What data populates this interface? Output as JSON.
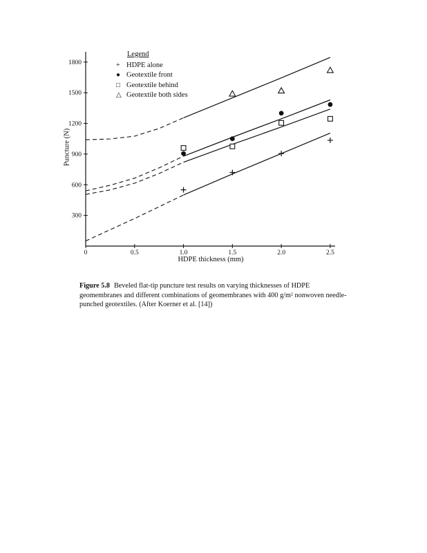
{
  "figure": {
    "caption_label": "Figure 5.8",
    "caption_text": "Beveled flat-tip puncture test results on varying thicknesses of HDPE geomembranes and different combinations of geomembranes with 400 g/m² nonwoven needle-punched geotextiles. (After Koerner et al. [14])"
  },
  "chart_data": {
    "type": "scatter",
    "title": "",
    "xlabel": "HDPE thickness (mm)",
    "ylabel": "Puncture (N)",
    "xlim": [
      0,
      2.55
    ],
    "ylim": [
      0,
      1900
    ],
    "xticks": [
      0,
      0.5,
      1.0,
      1.5,
      2.0,
      2.5
    ],
    "xtick_labels": [
      "0",
      "0.5",
      "1.0",
      "1.5",
      "2.0",
      "2.5"
    ],
    "yticks": [
      300,
      600,
      900,
      1200,
      1500,
      1800
    ],
    "grid": false,
    "line_color": "#111111",
    "legend": {
      "title": "Legend",
      "position": "top-left"
    },
    "legend_note": "dashed segments are extrapolated trends below 1.0 mm; solid trend lines from 1.0 to 2.5 mm",
    "series": [
      {
        "name": "HDPE alone",
        "marker": "plus",
        "legend_glyph": "+",
        "points": [
          [
            1.0,
            550
          ],
          [
            1.5,
            720
          ],
          [
            2.0,
            905
          ],
          [
            2.5,
            1035
          ]
        ],
        "trend_dashed": [
          [
            0,
            50
          ],
          [
            0.25,
            160
          ],
          [
            0.5,
            270
          ],
          [
            0.75,
            385
          ],
          [
            1.0,
            500
          ]
        ],
        "trend_solid": [
          [
            1.0,
            500
          ],
          [
            1.5,
            705
          ],
          [
            2.0,
            905
          ],
          [
            2.5,
            1105
          ]
        ]
      },
      {
        "name": "Geotextile front",
        "marker": "circle-filled",
        "legend_glyph": "●",
        "points": [
          [
            1.0,
            905
          ],
          [
            1.5,
            1050
          ],
          [
            2.0,
            1300
          ],
          [
            2.5,
            1385
          ]
        ],
        "trend_dashed": [
          [
            0,
            540
          ],
          [
            0.25,
            595
          ],
          [
            0.5,
            665
          ],
          [
            0.75,
            765
          ],
          [
            1.0,
            880
          ]
        ],
        "trend_solid": [
          [
            1.0,
            880
          ],
          [
            1.5,
            1065
          ],
          [
            2.0,
            1245
          ],
          [
            2.5,
            1430
          ]
        ]
      },
      {
        "name": "Geotextile behind",
        "marker": "square-open",
        "legend_glyph": "□",
        "points": [
          [
            1.0,
            960
          ],
          [
            1.5,
            975
          ],
          [
            2.0,
            1205
          ],
          [
            2.5,
            1245
          ]
        ],
        "trend_dashed": [
          [
            0,
            505
          ],
          [
            0.25,
            550
          ],
          [
            0.5,
            615
          ],
          [
            0.75,
            710
          ],
          [
            1.0,
            820
          ]
        ],
        "trend_solid": [
          [
            1.0,
            820
          ],
          [
            1.5,
            995
          ],
          [
            2.0,
            1165
          ],
          [
            2.5,
            1340
          ]
        ]
      },
      {
        "name": "Geotextile both sides",
        "marker": "triangle-open",
        "legend_glyph": "△",
        "points": [
          [
            1.5,
            1490
          ],
          [
            2.0,
            1520
          ],
          [
            2.5,
            1720
          ]
        ],
        "trend_dashed": [
          [
            0,
            1040
          ],
          [
            0.25,
            1048
          ],
          [
            0.5,
            1075
          ],
          [
            0.75,
            1150
          ],
          [
            1.0,
            1255
          ]
        ],
        "trend_solid": [
          [
            1.0,
            1255
          ],
          [
            1.5,
            1450
          ],
          [
            2.0,
            1645
          ],
          [
            2.5,
            1845
          ]
        ]
      }
    ]
  }
}
